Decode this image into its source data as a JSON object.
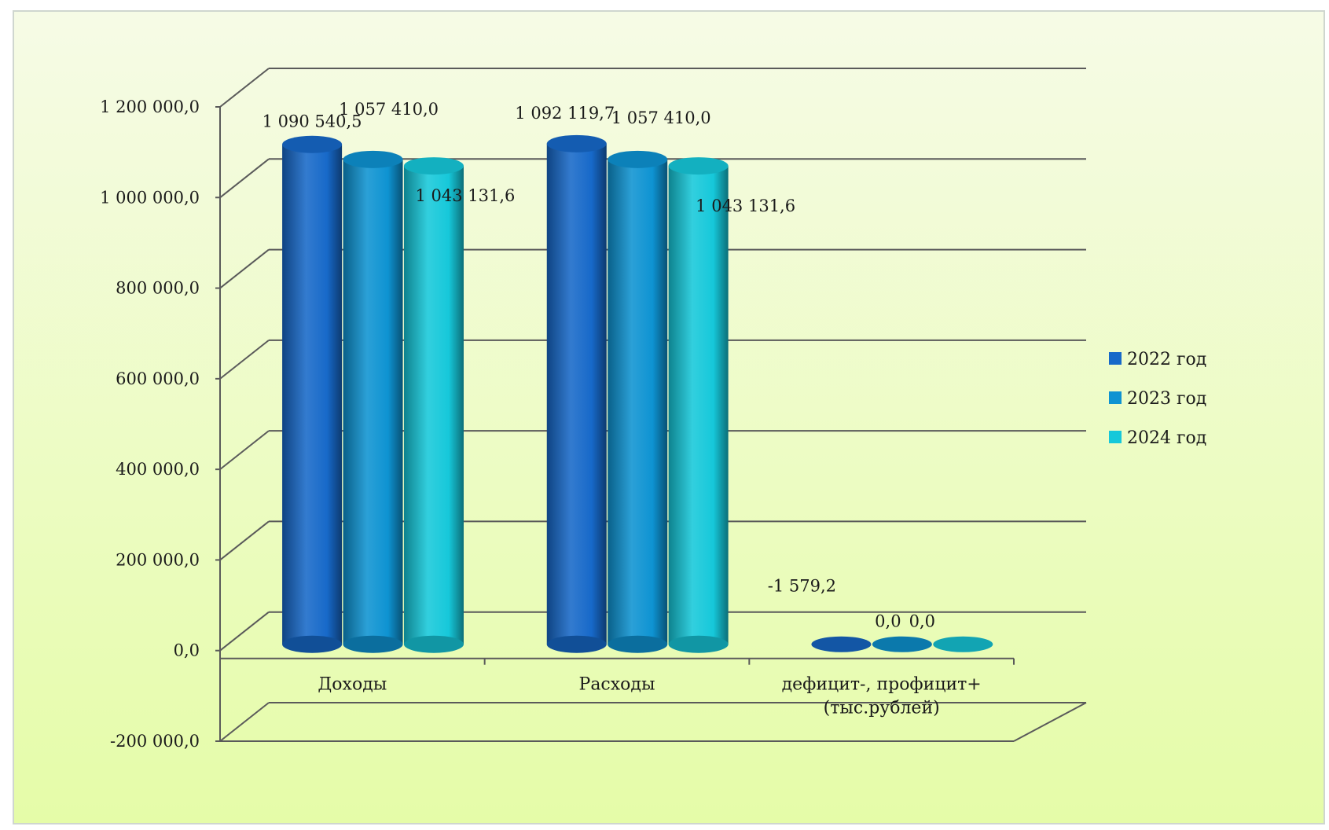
{
  "chart_data": {
    "type": "bar",
    "title": "",
    "xlabel": "",
    "ylabel": "",
    "categories": [
      "Доходы",
      "Расходы",
      "дефицит-, профицит+ (тыс.рублей)"
    ],
    "category_lines": [
      [
        "Доходы"
      ],
      [
        "Расходы"
      ],
      [
        "дефицит-, профицит+",
        "(тыс.рублей)"
      ]
    ],
    "series": [
      {
        "name": "2022 год",
        "values": [
          1090540.5,
          1092119.7,
          -1579.2
        ],
        "labels": [
          "1 090 540,5",
          "1 092 119,7",
          "-1 579,2"
        ],
        "color": "#1769c9"
      },
      {
        "name": "2023 год",
        "values": [
          1057410.0,
          1057410.0,
          0.0
        ],
        "labels": [
          "1 057 410,0",
          "1 057 410,0",
          "0,0"
        ],
        "color": "#0e93d2"
      },
      {
        "name": "2024 год",
        "values": [
          1043131.6,
          1043131.6,
          0.0
        ],
        "labels": [
          "1 043 131,6",
          "1 043 131,6",
          "0,0"
        ],
        "color": "#16c8da"
      }
    ],
    "ylim": [
      -200000,
      1200000
    ],
    "y_ticks": [
      -200000,
      0,
      200000,
      400000,
      600000,
      800000,
      1000000,
      1200000
    ],
    "y_tick_labels": [
      "-200 000,0",
      "0,0",
      "200 000,0",
      "400 000,0",
      "600 000,0",
      "800 000,0",
      "1 000 000,0",
      "1 200 000,0"
    ],
    "grid": true,
    "legend_position": "right",
    "style": "3d-cylinder",
    "background_colors": [
      "#f6fbe6",
      "#e5fca8"
    ]
  }
}
